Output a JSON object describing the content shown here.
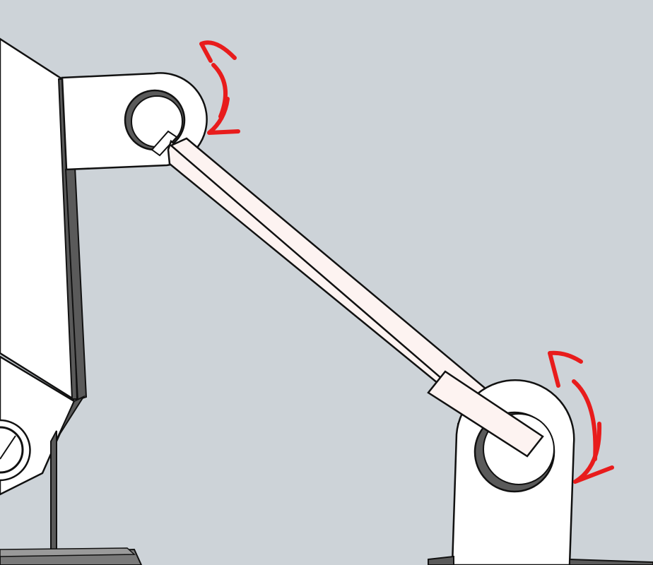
{
  "scene": {
    "background_color": "#cdd3d8",
    "part_fill_color": "#ffffff",
    "part_shadow_color": "#5a5a5a",
    "outline_color": "#111111",
    "link_fill_color": "#fdf3f1",
    "arrow_color": "#e81c1c"
  },
  "elements": [
    {
      "name": "left-body-bracket",
      "description_icon": "bracket-icon"
    },
    {
      "name": "top-pivot-lug",
      "description_icon": "lug-icon"
    },
    {
      "name": "top-pivot-hole",
      "description_icon": "hole-icon"
    },
    {
      "name": "connecting-link",
      "description_icon": "link-bar-icon"
    },
    {
      "name": "bottom-pivot-lug",
      "description_icon": "lug-icon"
    },
    {
      "name": "bottom-pivot-hole",
      "description_icon": "hole-icon"
    },
    {
      "name": "top-rotation-arrow",
      "description_icon": "curved-double-arrow-icon"
    },
    {
      "name": "bottom-rotation-arrow",
      "description_icon": "curved-double-arrow-icon"
    }
  ]
}
